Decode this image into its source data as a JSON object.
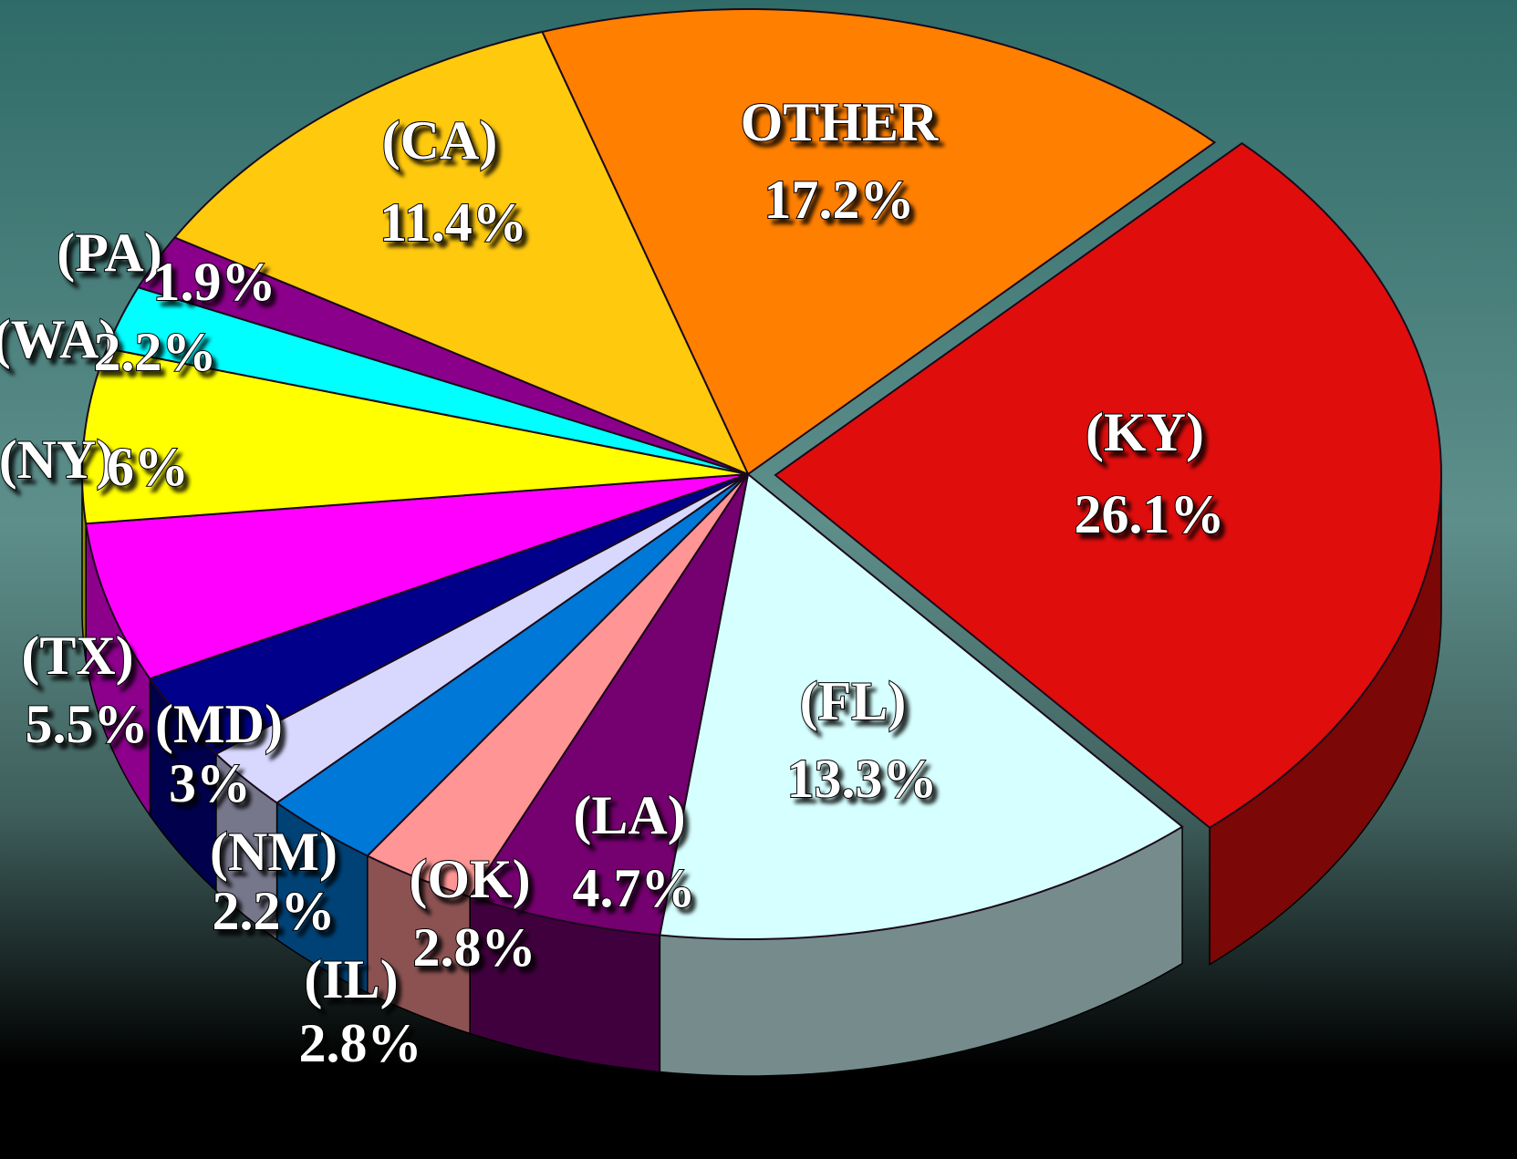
{
  "chart_data": {
    "type": "pie",
    "categories": [
      "OTHER",
      "(KY)",
      "(FL)",
      "(LA)",
      "(OK)",
      "(IL)",
      "(NM)",
      "(MD)",
      "(TX)",
      "(NY)",
      "(WA)",
      "(PA)",
      "(CA)"
    ],
    "values": [
      17.2,
      26.1,
      13.3,
      4.7,
      2.8,
      2.8,
      2.2,
      3,
      5.5,
      6,
      2.2,
      1.9,
      11.4
    ],
    "value_labels": [
      "17.2%",
      "26.1%",
      "13.3%",
      "4.7%",
      "2.8%",
      "2.8%",
      "2.2%",
      "3%",
      "5.5%",
      "6%",
      "2.2%",
      "1.9%",
      "11.4%"
    ],
    "colors": [
      "#ff7f00",
      "#e00d0d",
      "#d6ffff",
      "#75006f",
      "#ff9595",
      "#0078d7",
      "#d8d8ff",
      "#00008b",
      "#ff00ff",
      "#ffff00",
      "#00ffff",
      "#8b008b",
      "#ffc90e"
    ],
    "exploded": [
      "(KY)"
    ]
  }
}
